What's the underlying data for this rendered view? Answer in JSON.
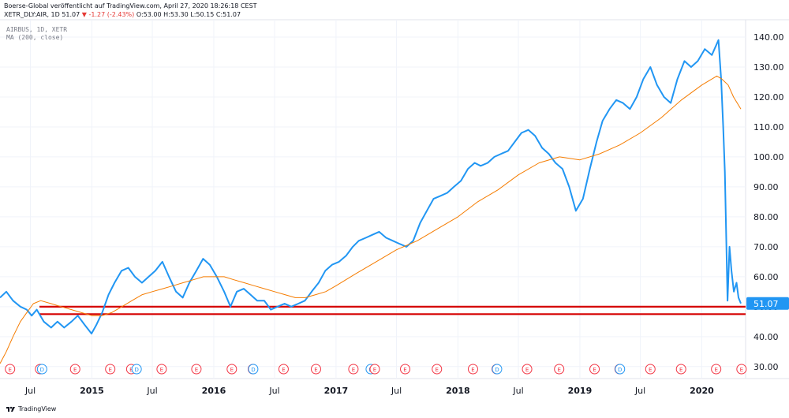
{
  "header": {
    "published": "Boerse-Global veröffentlicht auf TradingView.com, April 27, 2020 18:26:18 CEST",
    "symbol_line": "XETR_DLY:AIR, 1D 51.07",
    "change": "▼ -1.27 (-2.43%)",
    "ohlc": "O:53.00 H:53.30 L:50.15 C:51.07"
  },
  "legend": {
    "line1": "AIRBUS, 1D, XETR",
    "line2": "MA (200, close)"
  },
  "footer": {
    "brand": "TradingView"
  },
  "colors": {
    "price": "#2196f3",
    "ma": "#f57c00",
    "support": "#d50000",
    "price_label_bg": "#2196f3",
    "grid": "#f0f3fa",
    "event_e": "#f23645",
    "event_d": "#2196f3"
  },
  "chart_data": {
    "type": "line",
    "title": "AIRBUS, 1D, XETR",
    "x_ticks": [
      "Jul",
      "2015",
      "Jul",
      "2016",
      "Jul",
      "2017",
      "Jul",
      "2018",
      "Jul",
      "2019",
      "Jul",
      "2020"
    ],
    "y_ticks": [
      30,
      40,
      50,
      60,
      70,
      80,
      90,
      100,
      110,
      120,
      130,
      140
    ],
    "ylim": [
      26,
      145
    ],
    "xlim": [
      "2014-04-01",
      "2020-04-27"
    ],
    "last_price": "51.07",
    "grid": true,
    "series": [
      {
        "name": "AIRBUS, 1D, XETR",
        "points": [
          [
            "2014-04-01",
            53
          ],
          [
            "2014-04-20",
            55
          ],
          [
            "2014-05-10",
            52
          ],
          [
            "2014-06-01",
            50
          ],
          [
            "2014-06-20",
            49
          ],
          [
            "2014-07-05",
            47
          ],
          [
            "2014-07-20",
            49
          ],
          [
            "2014-08-10",
            45
          ],
          [
            "2014-09-01",
            43
          ],
          [
            "2014-09-20",
            45
          ],
          [
            "2014-10-10",
            43
          ],
          [
            "2014-11-01",
            45
          ],
          [
            "2014-11-20",
            47
          ],
          [
            "2014-12-10",
            44
          ],
          [
            "2014-12-31",
            41
          ],
          [
            "2015-01-15",
            44
          ],
          [
            "2015-02-01",
            48
          ],
          [
            "2015-02-20",
            54
          ],
          [
            "2015-03-10",
            58
          ],
          [
            "2015-03-31",
            62
          ],
          [
            "2015-04-20",
            63
          ],
          [
            "2015-05-10",
            60
          ],
          [
            "2015-05-31",
            58
          ],
          [
            "2015-06-20",
            60
          ],
          [
            "2015-07-10",
            62
          ],
          [
            "2015-07-31",
            65
          ],
          [
            "2015-08-20",
            60
          ],
          [
            "2015-09-10",
            55
          ],
          [
            "2015-09-30",
            53
          ],
          [
            "2015-10-20",
            58
          ],
          [
            "2015-11-10",
            62
          ],
          [
            "2015-11-30",
            66
          ],
          [
            "2015-12-20",
            64
          ],
          [
            "2016-01-10",
            60
          ],
          [
            "2016-02-01",
            55
          ],
          [
            "2016-02-20",
            50
          ],
          [
            "2016-03-10",
            55
          ],
          [
            "2016-03-31",
            56
          ],
          [
            "2016-04-20",
            54
          ],
          [
            "2016-05-10",
            52
          ],
          [
            "2016-05-31",
            52
          ],
          [
            "2016-06-20",
            49
          ],
          [
            "2016-07-10",
            50
          ],
          [
            "2016-07-31",
            51
          ],
          [
            "2016-08-20",
            50
          ],
          [
            "2016-09-10",
            51
          ],
          [
            "2016-09-30",
            52
          ],
          [
            "2016-10-20",
            55
          ],
          [
            "2016-11-10",
            58
          ],
          [
            "2016-11-30",
            62
          ],
          [
            "2016-12-20",
            64
          ],
          [
            "2017-01-10",
            65
          ],
          [
            "2017-01-31",
            67
          ],
          [
            "2017-02-20",
            70
          ],
          [
            "2017-03-10",
            72
          ],
          [
            "2017-03-31",
            73
          ],
          [
            "2017-04-20",
            74
          ],
          [
            "2017-05-10",
            75
          ],
          [
            "2017-05-31",
            73
          ],
          [
            "2017-06-20",
            72
          ],
          [
            "2017-07-10",
            71
          ],
          [
            "2017-07-31",
            70
          ],
          [
            "2017-08-20",
            72
          ],
          [
            "2017-09-10",
            78
          ],
          [
            "2017-09-30",
            82
          ],
          [
            "2017-10-20",
            86
          ],
          [
            "2017-11-10",
            87
          ],
          [
            "2017-11-30",
            88
          ],
          [
            "2017-12-20",
            90
          ],
          [
            "2018-01-10",
            92
          ],
          [
            "2018-01-31",
            96
          ],
          [
            "2018-02-20",
            98
          ],
          [
            "2018-03-10",
            97
          ],
          [
            "2018-03-31",
            98
          ],
          [
            "2018-04-20",
            100
          ],
          [
            "2018-05-10",
            101
          ],
          [
            "2018-05-31",
            102
          ],
          [
            "2018-06-20",
            105
          ],
          [
            "2018-07-10",
            108
          ],
          [
            "2018-07-31",
            109
          ],
          [
            "2018-08-20",
            107
          ],
          [
            "2018-09-10",
            103
          ],
          [
            "2018-09-30",
            101
          ],
          [
            "2018-10-20",
            98
          ],
          [
            "2018-11-10",
            96
          ],
          [
            "2018-11-30",
            90
          ],
          [
            "2018-12-20",
            82
          ],
          [
            "2019-01-10",
            86
          ],
          [
            "2019-01-31",
            96
          ],
          [
            "2019-02-20",
            105
          ],
          [
            "2019-03-10",
            112
          ],
          [
            "2019-03-31",
            116
          ],
          [
            "2019-04-20",
            119
          ],
          [
            "2019-05-10",
            118
          ],
          [
            "2019-05-31",
            116
          ],
          [
            "2019-06-20",
            120
          ],
          [
            "2019-07-10",
            126
          ],
          [
            "2019-07-31",
            130
          ],
          [
            "2019-08-20",
            124
          ],
          [
            "2019-09-10",
            120
          ],
          [
            "2019-09-30",
            118
          ],
          [
            "2019-10-20",
            126
          ],
          [
            "2019-11-10",
            132
          ],
          [
            "2019-11-30",
            130
          ],
          [
            "2019-12-20",
            132
          ],
          [
            "2020-01-10",
            136
          ],
          [
            "2020-01-31",
            134
          ],
          [
            "2020-02-20",
            139
          ],
          [
            "2020-02-28",
            126
          ],
          [
            "2020-03-05",
            110
          ],
          [
            "2020-03-10",
            95
          ],
          [
            "2020-03-13",
            80
          ],
          [
            "2020-03-18",
            52
          ],
          [
            "2020-03-24",
            70
          ],
          [
            "2020-03-30",
            62
          ],
          [
            "2020-04-06",
            55
          ],
          [
            "2020-04-14",
            58
          ],
          [
            "2020-04-20",
            53
          ],
          [
            "2020-04-27",
            51.07
          ]
        ]
      },
      {
        "name": "MA (200, close)",
        "points": [
          [
            "2014-04-01",
            31
          ],
          [
            "2014-04-20",
            35
          ],
          [
            "2014-05-10",
            40
          ],
          [
            "2014-06-01",
            45
          ],
          [
            "2014-06-20",
            48
          ],
          [
            "2014-07-10",
            51
          ],
          [
            "2014-08-01",
            52
          ],
          [
            "2014-09-01",
            51
          ],
          [
            "2014-10-01",
            50
          ],
          [
            "2014-11-01",
            49
          ],
          [
            "2014-12-01",
            48
          ],
          [
            "2015-01-01",
            47
          ],
          [
            "2015-02-01",
            47
          ],
          [
            "2015-03-01",
            48
          ],
          [
            "2015-04-01",
            50
          ],
          [
            "2015-05-01",
            52
          ],
          [
            "2015-06-01",
            54
          ],
          [
            "2015-07-01",
            55
          ],
          [
            "2015-08-01",
            56
          ],
          [
            "2015-09-01",
            57
          ],
          [
            "2015-10-01",
            58
          ],
          [
            "2015-11-01",
            59
          ],
          [
            "2015-12-01",
            60
          ],
          [
            "2016-01-01",
            60
          ],
          [
            "2016-02-01",
            60
          ],
          [
            "2016-03-01",
            59
          ],
          [
            "2016-04-01",
            58
          ],
          [
            "2016-05-01",
            57
          ],
          [
            "2016-06-01",
            56
          ],
          [
            "2016-07-01",
            55
          ],
          [
            "2016-08-01",
            54
          ],
          [
            "2016-09-01",
            53
          ],
          [
            "2016-10-01",
            53
          ],
          [
            "2016-11-01",
            54
          ],
          [
            "2016-12-01",
            55
          ],
          [
            "2017-01-01",
            57
          ],
          [
            "2017-03-01",
            61
          ],
          [
            "2017-05-01",
            65
          ],
          [
            "2017-07-01",
            69
          ],
          [
            "2017-09-01",
            72
          ],
          [
            "2017-11-01",
            76
          ],
          [
            "2018-01-01",
            80
          ],
          [
            "2018-03-01",
            85
          ],
          [
            "2018-05-01",
            89
          ],
          [
            "2018-07-01",
            94
          ],
          [
            "2018-09-01",
            98
          ],
          [
            "2018-11-01",
            100
          ],
          [
            "2019-01-01",
            99
          ],
          [
            "2019-03-01",
            101
          ],
          [
            "2019-05-01",
            104
          ],
          [
            "2019-07-01",
            108
          ],
          [
            "2019-09-01",
            113
          ],
          [
            "2019-11-01",
            119
          ],
          [
            "2020-01-01",
            124
          ],
          [
            "2020-02-15",
            127
          ],
          [
            "2020-03-01",
            126
          ],
          [
            "2020-03-20",
            124
          ],
          [
            "2020-04-05",
            120
          ],
          [
            "2020-04-27",
            116
          ]
        ]
      }
    ],
    "support_lines": [
      50,
      47.5
    ],
    "events": [
      {
        "type": "E",
        "date": "2014-05-01"
      },
      {
        "type": "E",
        "date": "2014-07-30"
      },
      {
        "type": "D",
        "date": "2014-08-05"
      },
      {
        "type": "E",
        "date": "2014-11-12"
      },
      {
        "type": "E",
        "date": "2015-02-25"
      },
      {
        "type": "E",
        "date": "2015-04-29"
      },
      {
        "type": "D",
        "date": "2015-05-15"
      },
      {
        "type": "E",
        "date": "2015-07-29"
      },
      {
        "type": "E",
        "date": "2015-11-10"
      },
      {
        "type": "E",
        "date": "2016-02-24"
      },
      {
        "type": "E",
        "date": "2016-04-27"
      },
      {
        "type": "D",
        "date": "2016-04-28"
      },
      {
        "type": "E",
        "date": "2016-07-28"
      },
      {
        "type": "E",
        "date": "2016-11-02"
      },
      {
        "type": "E",
        "date": "2017-02-22"
      },
      {
        "type": "D",
        "date": "2017-04-15"
      },
      {
        "type": "E",
        "date": "2017-04-27"
      },
      {
        "type": "E",
        "date": "2017-07-27"
      },
      {
        "type": "E",
        "date": "2017-10-30"
      },
      {
        "type": "E",
        "date": "2018-02-15"
      },
      {
        "type": "E",
        "date": "2018-04-27"
      },
      {
        "type": "D",
        "date": "2018-04-28"
      },
      {
        "type": "E",
        "date": "2018-07-27"
      },
      {
        "type": "E",
        "date": "2018-10-31"
      },
      {
        "type": "E",
        "date": "2019-02-14"
      },
      {
        "type": "E",
        "date": "2019-04-30"
      },
      {
        "type": "D",
        "date": "2019-05-01"
      },
      {
        "type": "E",
        "date": "2019-07-31"
      },
      {
        "type": "E",
        "date": "2019-10-31"
      },
      {
        "type": "E",
        "date": "2020-02-13"
      },
      {
        "type": "E",
        "date": "2020-04-29"
      }
    ]
  }
}
